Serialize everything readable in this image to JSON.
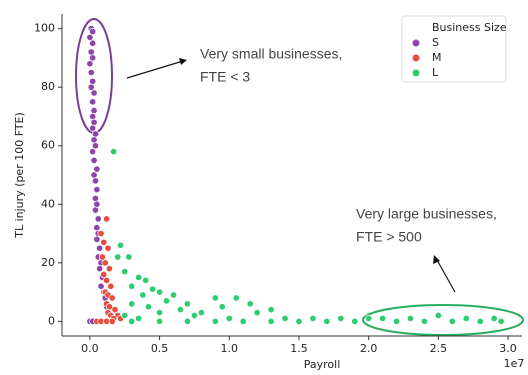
{
  "chart_data": {
    "type": "scatter",
    "xlabel": "Payroll",
    "ylabel": "TL injury (per 100 FTE)",
    "x_offset_label": "1e7",
    "xlim": [
      -0.2,
      3.1
    ],
    "ylim": [
      -5,
      105
    ],
    "xticks": [
      {
        "value": 0,
        "label": "0.0"
      },
      {
        "value": 0.5,
        "label": "0.5"
      },
      {
        "value": 1,
        "label": "1.0"
      },
      {
        "value": 1.5,
        "label": "1.5"
      },
      {
        "value": 2,
        "label": "2.0"
      },
      {
        "value": 2.5,
        "label": "2.5"
      },
      {
        "value": 3,
        "label": "3.0"
      }
    ],
    "yticks": [
      0,
      20,
      40,
      60,
      80,
      100
    ],
    "grid": false,
    "legend_title": "Business Size",
    "legend_position": "upper right",
    "annotations": [
      {
        "lines": [
          "Very small businesses,",
          "FTE < 3"
        ]
      },
      {
        "lines": [
          "Very large businesses,",
          "FTE > 500"
        ]
      }
    ],
    "series": [
      {
        "name": "S",
        "color": "#8e44ad",
        "x": [
          0.01,
          0.02,
          0.0,
          0.02,
          0.01,
          0.02,
          0.0,
          0.01,
          0.02,
          0.01,
          0.03,
          0.02,
          0.03,
          0.02,
          0.03,
          0.02,
          0.04,
          0.03,
          0.04,
          0.02,
          0.03,
          0.05,
          0.03,
          0.04,
          0.05,
          0.04,
          0.05,
          0.04,
          0.06,
          0.05,
          0.06,
          0.05,
          0.07,
          0.06,
          0.08,
          0.07,
          0.09,
          0.08,
          0.1,
          0.11,
          0.12,
          0.0,
          0.02
        ],
        "values": [
          100,
          99,
          97,
          95,
          92,
          90,
          88,
          85,
          82,
          80,
          78,
          75,
          72,
          70,
          68,
          66,
          64,
          62,
          60,
          58,
          55,
          52,
          50,
          48,
          45,
          42,
          40,
          38,
          35,
          32,
          30,
          28,
          25,
          22,
          20,
          18,
          15,
          12,
          10,
          8,
          5,
          0,
          0
        ]
      },
      {
        "name": "M",
        "color": "#e74c3c",
        "x": [
          0.12,
          0.08,
          0.1,
          0.13,
          0.09,
          0.11,
          0.14,
          0.1,
          0.12,
          0.15,
          0.11,
          0.13,
          0.16,
          0.12,
          0.14,
          0.18,
          0.13,
          0.15,
          0.2,
          0.17,
          0.05,
          0.08,
          0.12,
          0.16,
          0.22
        ],
        "values": [
          35,
          30,
          27,
          25,
          22,
          20,
          18,
          16,
          14,
          12,
          10,
          9,
          8,
          6,
          5,
          4,
          3,
          2,
          2,
          1,
          0,
          0,
          0,
          0,
          1
        ]
      },
      {
        "name": "L",
        "color": "#2ecc71",
        "x": [
          0.17,
          0.22,
          0.2,
          0.28,
          0.25,
          0.35,
          0.4,
          0.3,
          0.45,
          0.5,
          0.38,
          0.6,
          0.55,
          0.7,
          0.9,
          1.05,
          0.95,
          1.15,
          1.3,
          1.2,
          0.8,
          0.65,
          0.42,
          0.3,
          0.5,
          0.75,
          1.0,
          1.4,
          1.6,
          1.8,
          1.9,
          2.0,
          2.1,
          2.2,
          2.3,
          2.4,
          2.5,
          2.6,
          2.7,
          2.8,
          2.9,
          2.95,
          0.3,
          0.5,
          0.7,
          0.9,
          1.1,
          1.3,
          1.5,
          1.7,
          0.25,
          0.35
        ],
        "values": [
          58,
          26,
          22,
          22,
          17,
          15,
          14,
          12,
          11,
          10,
          9,
          9,
          7,
          6,
          8,
          8,
          5,
          6,
          4,
          3,
          3,
          4,
          5,
          6,
          3,
          2,
          1,
          1,
          1,
          1,
          0,
          1,
          1,
          0,
          1,
          0,
          2,
          0,
          1,
          0,
          1,
          0,
          0,
          0,
          0,
          0,
          0,
          0,
          0,
          0,
          2,
          1
        ]
      }
    ]
  }
}
